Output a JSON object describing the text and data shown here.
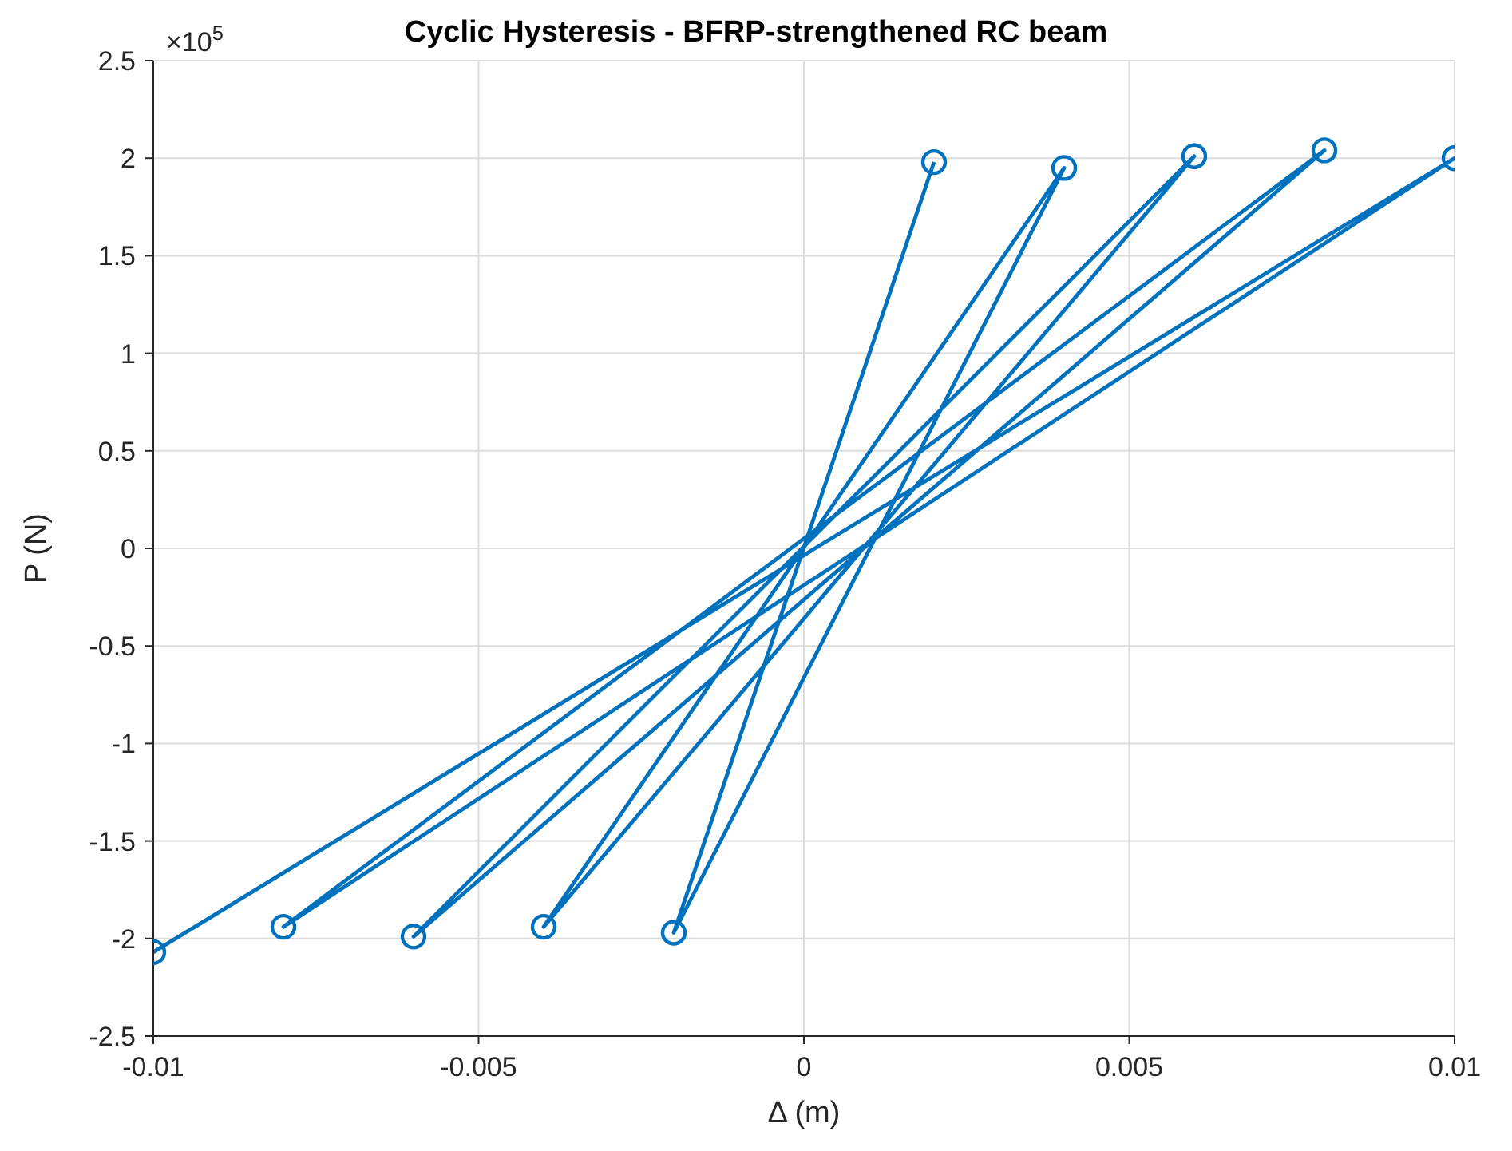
{
  "chart_data": {
    "type": "line",
    "title": "Cyclic Hysteresis - BFRP-strengthened RC beam",
    "xlabel": "Δ (m)",
    "ylabel": "P (N)",
    "annotations": [
      "×10$^{5}$"
    ],
    "x": [
      0.002,
      -0.002,
      0.004,
      -0.004,
      0.006,
      -0.006,
      0.008,
      -0.008,
      0.01,
      -0.01
    ],
    "series": [
      {
        "color": "#0072bd",
        "values": [
          1.98,
          -1.97,
          1.95,
          -1.94,
          2.01,
          -1.99,
          2.04,
          -1.94,
          2.0,
          -2.07
        ]
      }
    ],
    "xlim": [
      -0.01,
      0.01
    ],
    "xticks": [
      -0.01,
      -0.005,
      0,
      0.005,
      0.01
    ],
    "ylim": [
      -2.5,
      2.5
    ],
    "yticks": [
      -2.5,
      -2,
      -1.5,
      -1,
      -0.5,
      0,
      0.5,
      1,
      1.5,
      2,
      2.5
    ],
    "grid": true,
    "marker": "circle",
    "line_style": "solid"
  }
}
